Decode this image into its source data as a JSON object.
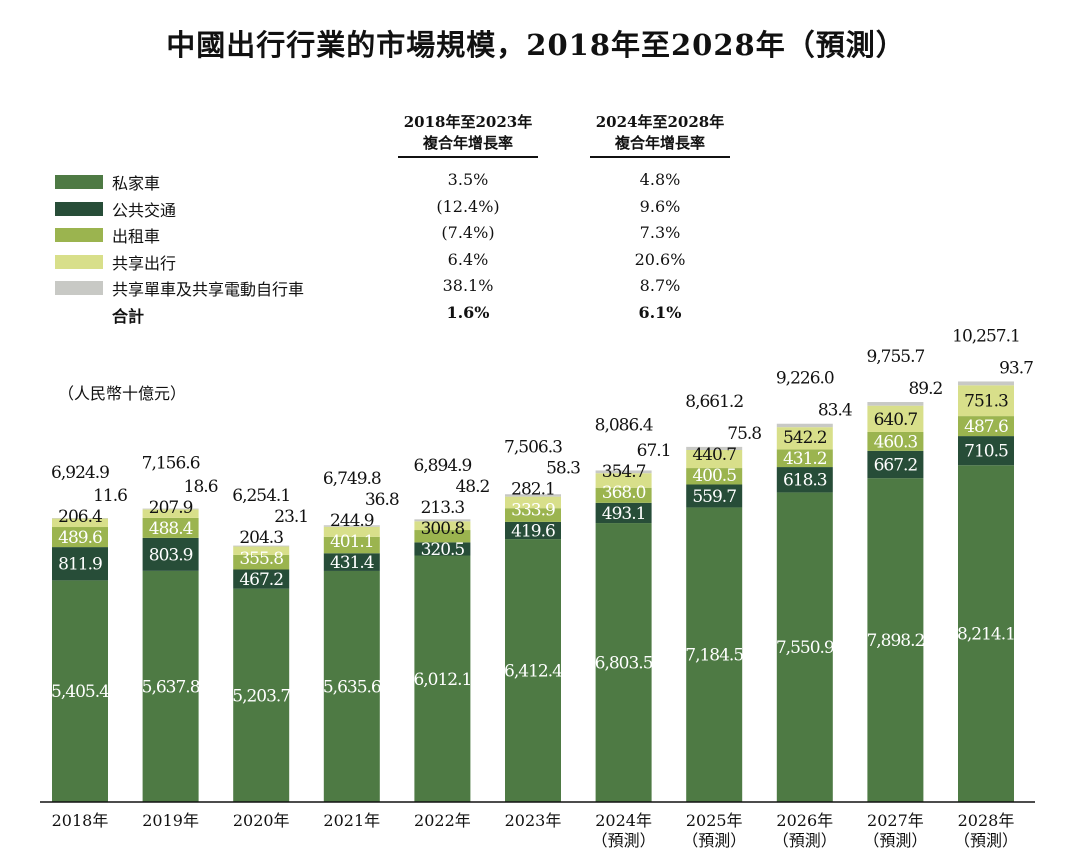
{
  "title": "中國出行行業的市場規模，2018年至2028年（預測）",
  "unit": "（人民幣十億元）",
  "cagr_headers": [
    [
      "2018年至2023年",
      "複合年增長率"
    ],
    [
      "2024年至2028年",
      "複合年增長率"
    ]
  ],
  "legend": [
    {
      "name": "私家車",
      "color": "#4e7a44",
      "cagr1": "3.5%",
      "cagr2": "4.8%"
    },
    {
      "name": "公共交通",
      "color": "#274d38",
      "cagr1": "(12.4%)",
      "cagr2": "9.6%"
    },
    {
      "name": "出租車",
      "color": "#9bb44f",
      "cagr1": "(7.4%)",
      "cagr2": "7.3%"
    },
    {
      "name": "共享出行",
      "color": "#d8df8a",
      "cagr1": "6.4%",
      "cagr2": "20.6%"
    },
    {
      "name": "共享單車及共享電動自行車",
      "color": "#c8c9c5",
      "cagr1": "38.1%",
      "cagr2": "8.7%"
    },
    {
      "name": "合計",
      "color": "",
      "cagr1": "1.6%",
      "cagr2": "6.1%"
    }
  ],
  "chart_data": {
    "type": "bar",
    "stacked": true,
    "categories": [
      "2018年",
      "2019年",
      "2020年",
      "2021年",
      "2022年",
      "2023年",
      "2024年\n（預測）",
      "2025年\n（預測）",
      "2026年\n（預測）",
      "2027年\n（預測）",
      "2028年\n（預測）"
    ],
    "series": [
      {
        "name": "私家車",
        "values": [
          5405.4,
          5637.8,
          5203.7,
          5635.6,
          6012.1,
          6412.4,
          6803.5,
          7184.5,
          7550.9,
          7898.2,
          8214.1
        ]
      },
      {
        "name": "公共交通",
        "values": [
          811.9,
          803.9,
          467.2,
          431.4,
          320.5,
          419.6,
          493.1,
          559.7,
          618.3,
          667.2,
          710.5
        ]
      },
      {
        "name": "出租車",
        "values": [
          489.6,
          488.4,
          355.8,
          401.1,
          300.8,
          333.9,
          368.0,
          400.5,
          431.2,
          460.3,
          487.6
        ]
      },
      {
        "name": "共享出行",
        "values": [
          206.4,
          207.9,
          204.3,
          244.9,
          213.3,
          282.1,
          354.7,
          440.7,
          542.2,
          640.7,
          751.3
        ]
      },
      {
        "name": "共享單車及共享電動自行車",
        "values": [
          11.6,
          18.6,
          23.1,
          36.8,
          48.2,
          58.3,
          67.1,
          75.8,
          83.4,
          89.2,
          93.7
        ]
      }
    ],
    "totals": [
      "6,924.9",
      "7,156.6",
      "6,254.1",
      "6,749.8",
      "6,894.9",
      "7,506.3",
      "8,086.4",
      "8,661.2",
      "9,226.0",
      "9,755.7",
      "10,257.1"
    ],
    "labels": [
      [
        "5,405.4",
        "5,637.8",
        "5,203.7",
        "5,635.6",
        "6,012.1",
        "6,412.4",
        "6,803.5",
        "7,184.5",
        "7,550.9",
        "7,898.2",
        "8,214.1"
      ],
      [
        "811.9",
        "803.9",
        "467.2",
        "431.4",
        "320.5",
        "419.6",
        "493.1",
        "559.7",
        "618.3",
        "667.2",
        "710.5"
      ],
      [
        "489.6",
        "488.4",
        "355.8",
        "401.1",
        "300.8",
        "333.9",
        "368.0",
        "400.5",
        "431.2",
        "460.3",
        "487.6"
      ],
      [
        "206.4",
        "207.9",
        "204.3",
        "244.9",
        "213.3",
        "282.1",
        "354.7",
        "440.7",
        "542.2",
        "640.7",
        "751.3"
      ],
      [
        "11.6",
        "18.6",
        "23.1",
        "36.8",
        "48.2",
        "58.3",
        "67.1",
        "75.8",
        "83.4",
        "89.2",
        "93.7"
      ]
    ],
    "ylim": [
      0,
      10500
    ],
    "grid": false,
    "legend_position": "top-left"
  }
}
